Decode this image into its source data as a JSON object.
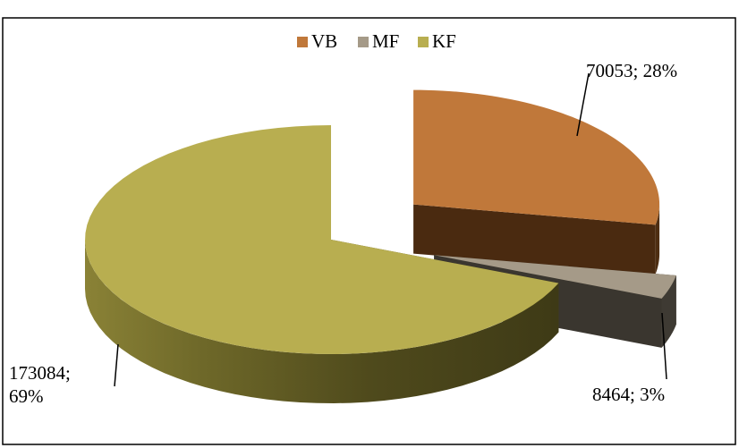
{
  "chart_data": {
    "type": "pie",
    "categories": [
      "VB",
      "MF",
      "KF"
    ],
    "values": [
      70053,
      8464,
      173084
    ],
    "value_labels": [
      "70053; 28%",
      "8464; 3%",
      "173084; 69%"
    ],
    "colors": [
      "#c0783a",
      "#a59a88",
      "#b8ae50"
    ],
    "legend": "top"
  }
}
